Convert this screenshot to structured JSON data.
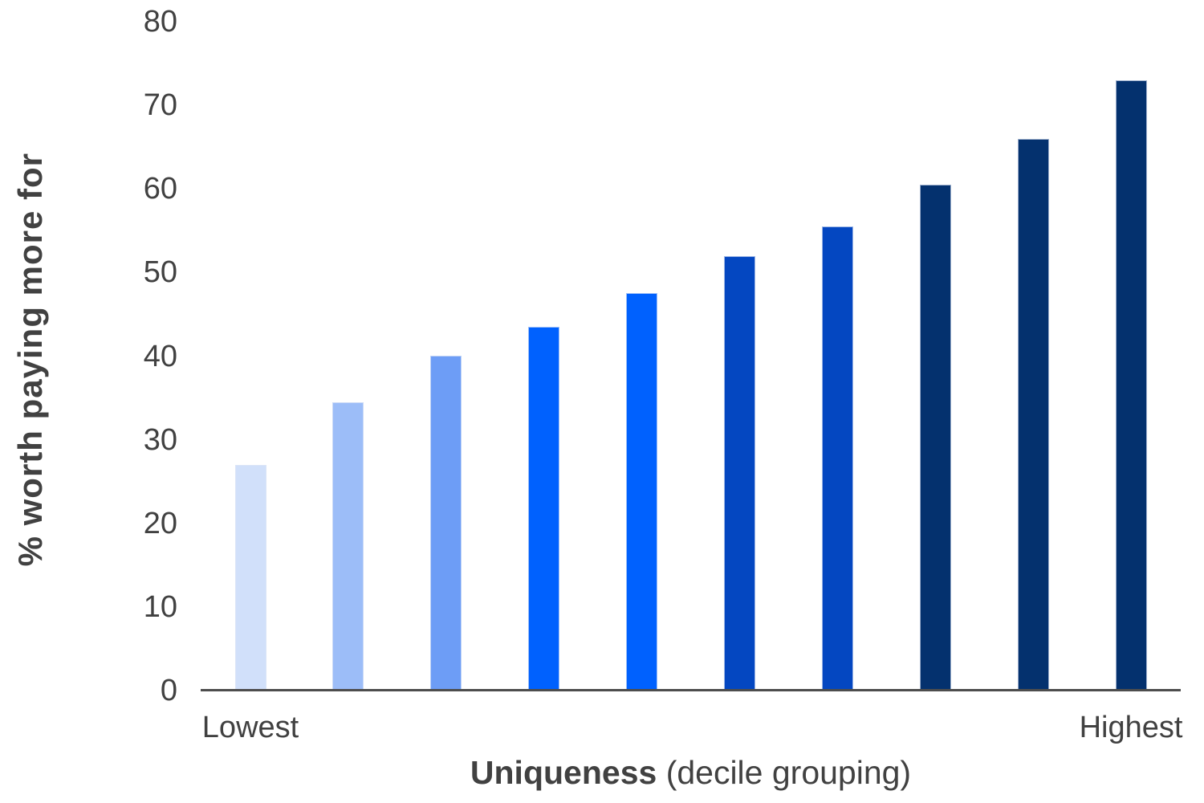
{
  "chart_data": {
    "type": "bar",
    "title": "",
    "ylabel": "% worth paying more for",
    "xlabel_emphasis": "Uniqueness",
    "xlabel_suffix": " (decile grouping)",
    "x_tick_first": "Lowest",
    "x_tick_last": "Highest",
    "categories": [
      "1",
      "2",
      "3",
      "4",
      "5",
      "6",
      "7",
      "8",
      "9",
      "10"
    ],
    "values": [
      27,
      34.5,
      40,
      43.5,
      47.5,
      52,
      55.5,
      60.5,
      66,
      73
    ],
    "bar_colors": [
      "#D1E0FA",
      "#9CBDF8",
      "#6D9DF6",
      "#0061FE",
      "#0061FE",
      "#0447C1",
      "#0447C1",
      "#04316E",
      "#04316E",
      "#04316E"
    ],
    "y_ticks": [
      0,
      10,
      20,
      30,
      40,
      50,
      60,
      70,
      80
    ],
    "ylim": [
      0,
      80
    ],
    "grid": false,
    "legend": false,
    "text_color": "#414141",
    "axis_line_color": "#4D4D4D"
  }
}
